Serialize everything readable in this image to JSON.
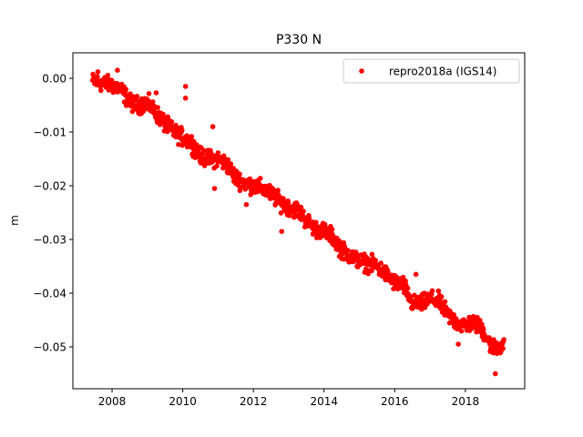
{
  "chart_data": {
    "type": "scatter",
    "title": "P330 N",
    "xlabel": "",
    "ylabel": "m",
    "xlim": [
      2006.89,
      2019.68
    ],
    "ylim": [
      -0.0578,
      0.00475
    ],
    "xticks": [
      2008,
      2010,
      2012,
      2014,
      2016,
      2018
    ],
    "xtick_labels": [
      "2008",
      "2010",
      "2012",
      "2014",
      "2016",
      "2018"
    ],
    "yticks": [
      0.0,
      -0.01,
      -0.02,
      -0.03,
      -0.04,
      -0.05
    ],
    "ytick_labels": [
      "0.00",
      "−0.01",
      "−0.02",
      "−0.03",
      "−0.04",
      "−0.05"
    ],
    "grid": false,
    "legend": {
      "position": "top-right",
      "entries": [
        "repro2018a (IGS14)"
      ]
    },
    "series": [
      {
        "name": "repro2018a (IGS14)",
        "color": "#ff0000",
        "marker": "circle",
        "scatter_m": 0.0016,
        "centerline": [
          [
            2007.45,
            -0.0005
          ],
          [
            2007.75,
            -0.001
          ],
          [
            2008.0,
            -0.0012
          ],
          [
            2008.25,
            -0.002
          ],
          [
            2008.5,
            -0.0045
          ],
          [
            2008.75,
            -0.005
          ],
          [
            2009.0,
            -0.0045
          ],
          [
            2009.25,
            -0.0065
          ],
          [
            2009.5,
            -0.0085
          ],
          [
            2009.75,
            -0.01
          ],
          [
            2010.0,
            -0.011
          ],
          [
            2010.25,
            -0.012
          ],
          [
            2010.5,
            -0.0145
          ],
          [
            2010.75,
            -0.015
          ],
          [
            2011.0,
            -0.015
          ],
          [
            2011.25,
            -0.016
          ],
          [
            2011.5,
            -0.0185
          ],
          [
            2011.75,
            -0.0195
          ],
          [
            2012.0,
            -0.02
          ],
          [
            2012.25,
            -0.0205
          ],
          [
            2012.5,
            -0.0215
          ],
          [
            2012.75,
            -0.023
          ],
          [
            2013.0,
            -0.024
          ],
          [
            2013.25,
            -0.0245
          ],
          [
            2013.5,
            -0.0265
          ],
          [
            2013.75,
            -0.028
          ],
          [
            2014.0,
            -0.0285
          ],
          [
            2014.25,
            -0.0295
          ],
          [
            2014.5,
            -0.032
          ],
          [
            2014.75,
            -0.033
          ],
          [
            2015.0,
            -0.034
          ],
          [
            2015.25,
            -0.0345
          ],
          [
            2015.5,
            -0.035
          ],
          [
            2015.75,
            -0.0365
          ],
          [
            2016.0,
            -0.038
          ],
          [
            2016.25,
            -0.0385
          ],
          [
            2016.5,
            -0.042
          ],
          [
            2016.75,
            -0.042
          ],
          [
            2017.0,
            -0.041
          ],
          [
            2017.25,
            -0.0415
          ],
          [
            2017.5,
            -0.044
          ],
          [
            2017.75,
            -0.0455
          ],
          [
            2018.0,
            -0.046
          ],
          [
            2018.25,
            -0.0455
          ],
          [
            2018.5,
            -0.047
          ],
          [
            2018.75,
            -0.05
          ],
          [
            2019.0,
            -0.05
          ],
          [
            2019.1,
            -0.049
          ]
        ],
        "outliers": [
          [
            2010.08,
            -0.0015
          ],
          [
            2010.08,
            -0.0037
          ],
          [
            2010.85,
            -0.009
          ],
          [
            2009.25,
            -0.0027
          ],
          [
            2010.9,
            -0.0205
          ],
          [
            2011.8,
            -0.0235
          ],
          [
            2012.8,
            -0.0285
          ],
          [
            2016.6,
            -0.0365
          ],
          [
            2018.85,
            -0.055
          ],
          [
            2017.8,
            -0.0495
          ],
          [
            2007.6,
            0.0012
          ],
          [
            2008.15,
            0.0015
          ]
        ]
      }
    ]
  }
}
